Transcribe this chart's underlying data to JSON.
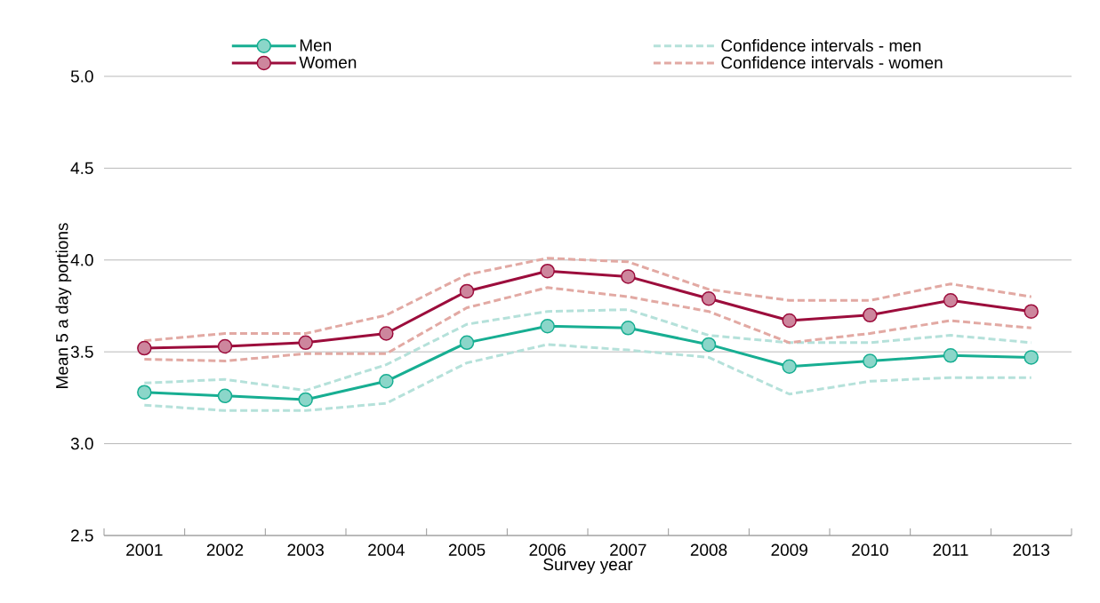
{
  "chart_data": {
    "type": "line",
    "xlabel": "Survey year",
    "ylabel": "Mean 5 a day portions",
    "categories": [
      "2001",
      "2002",
      "2003",
      "2004",
      "2005",
      "2006",
      "2007",
      "2008",
      "2009",
      "2010",
      "2011",
      "2013"
    ],
    "ylim": [
      2.5,
      5.0
    ],
    "yticks": [
      {
        "value": 2.5,
        "label": "2.5"
      },
      {
        "value": 3.0,
        "label": "3.0"
      },
      {
        "value": 3.5,
        "label": "3.5"
      },
      {
        "value": 4.0,
        "label": "4.0"
      },
      {
        "value": 4.5,
        "label": "4.5"
      },
      {
        "value": 5.0,
        "label": "5.0"
      }
    ],
    "grid": "y",
    "legend": "top",
    "series": [
      {
        "name": "Men",
        "color": "#17ae92",
        "marker": "circle",
        "line_style": "solid",
        "values": [
          3.28,
          3.26,
          3.24,
          3.34,
          3.55,
          3.64,
          3.63,
          3.54,
          3.42,
          3.45,
          3.48,
          3.47
        ]
      },
      {
        "name": "Women",
        "color": "#9c0d3c",
        "marker": "circle",
        "line_style": "solid",
        "values": [
          3.52,
          3.53,
          3.55,
          3.6,
          3.83,
          3.94,
          3.91,
          3.79,
          3.67,
          3.7,
          3.78,
          3.72
        ]
      },
      {
        "name": "Confidence intervals - men",
        "color": "#b5e1da",
        "marker": "none",
        "line_style": "dashed",
        "values": [
          3.33,
          3.35,
          3.29,
          3.43,
          3.65,
          3.72,
          3.73,
          3.59,
          3.55,
          3.55,
          3.59,
          3.55
        ]
      },
      {
        "color": "#b5e1da",
        "marker": "none",
        "line_style": "dashed",
        "values": [
          3.21,
          3.18,
          3.18,
          3.22,
          3.44,
          3.54,
          3.51,
          3.47,
          3.27,
          3.34,
          3.36,
          3.36
        ]
      },
      {
        "name": "Confidence intervals - women",
        "color": "#e2a9a3",
        "marker": "none",
        "line_style": "dashed",
        "values": [
          3.56,
          3.6,
          3.6,
          3.7,
          3.92,
          4.01,
          3.99,
          3.84,
          3.78,
          3.78,
          3.87,
          3.8
        ]
      },
      {
        "color": "#e2a9a3",
        "marker": "none",
        "line_style": "dashed",
        "values": [
          3.46,
          3.45,
          3.49,
          3.49,
          3.74,
          3.85,
          3.8,
          3.72,
          3.55,
          3.6,
          3.67,
          3.63
        ]
      }
    ]
  }
}
